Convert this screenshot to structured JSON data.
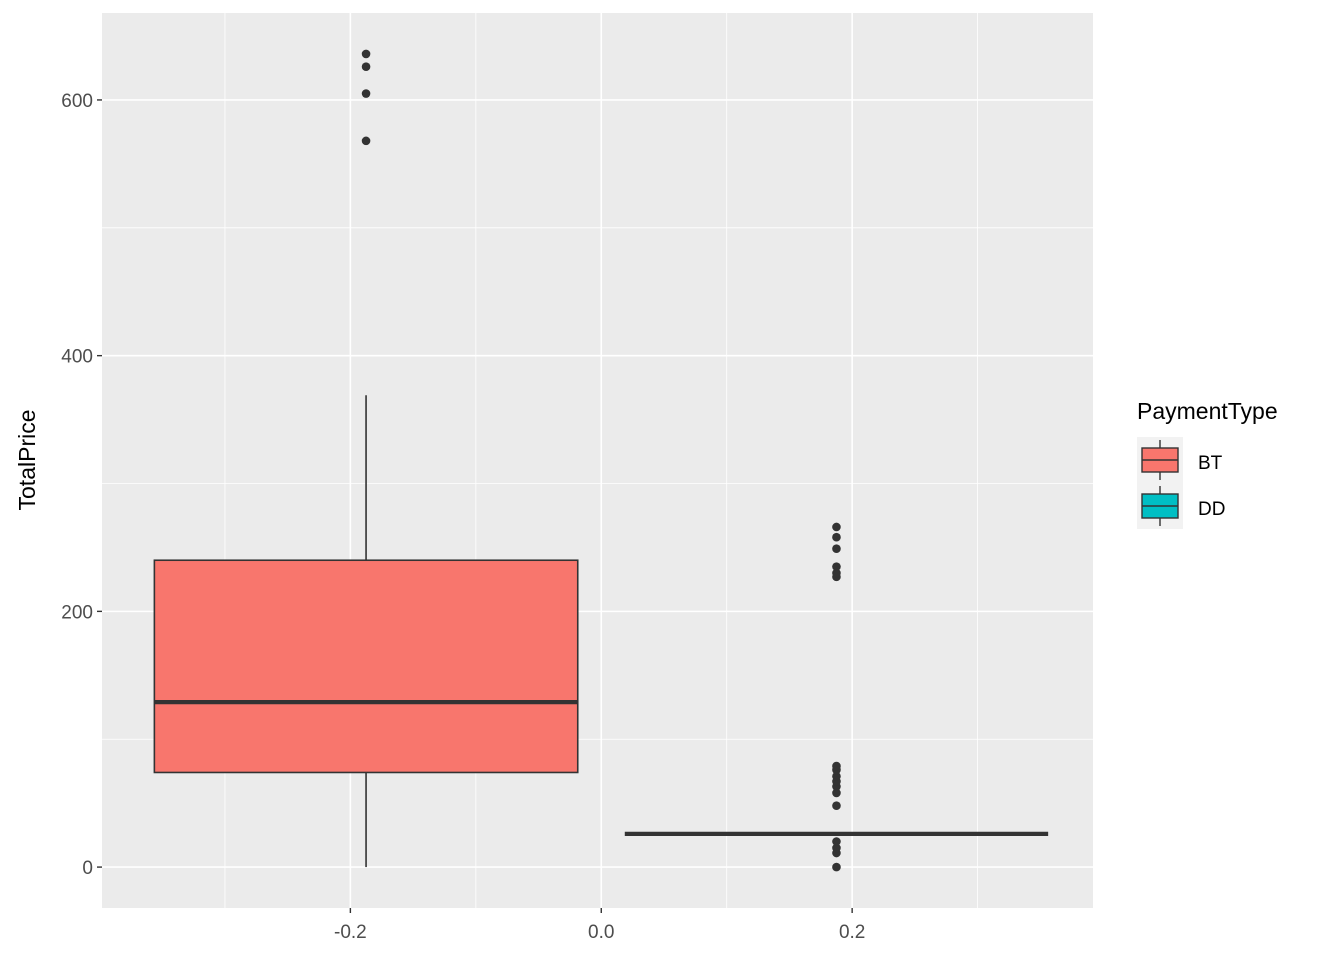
{
  "chart_data": {
    "type": "box",
    "xlabel": "",
    "ylabel": "TotalPrice",
    "xlim": [
      -0.398,
      0.392
    ],
    "ylim": [
      -32,
      668
    ],
    "x_ticks": [
      -0.2,
      0.0,
      0.2
    ],
    "x_tick_labels": [
      "-0.2",
      "0.0",
      "0.2"
    ],
    "y_ticks": [
      0,
      200,
      400,
      600
    ],
    "y_tick_labels": [
      "0",
      "200",
      "400",
      "600"
    ],
    "grid": true,
    "legend": {
      "title": "PaymentType",
      "position": "right",
      "entries": [
        {
          "label": "BT",
          "color": "#F8766D"
        },
        {
          "label": "DD",
          "color": "#00BFC4"
        }
      ]
    },
    "series": [
      {
        "name": "BT",
        "color": "#F8766D",
        "x_center": -0.1875,
        "box_width": 0.3375,
        "whisker_low": 0,
        "q1": 74,
        "median": 129,
        "q3": 240,
        "whisker_high": 369,
        "outliers": [
          568,
          605,
          626,
          636
        ]
      },
      {
        "name": "DD",
        "color": "#00BFC4",
        "x_center": 0.1875,
        "box_width": 0.3375,
        "whisker_low": 26,
        "q1": 26,
        "median": 26,
        "q3": 26,
        "whisker_high": 26,
        "outliers": [
          0,
          11,
          15,
          20,
          48,
          58,
          63,
          67,
          71,
          76,
          79,
          227,
          230,
          235,
          249,
          258,
          266
        ]
      }
    ]
  },
  "colors": {
    "panel_background": "#EBEBEB",
    "grid_major": "#FFFFFF",
    "box_outline": "#333333",
    "point": "#333333"
  }
}
